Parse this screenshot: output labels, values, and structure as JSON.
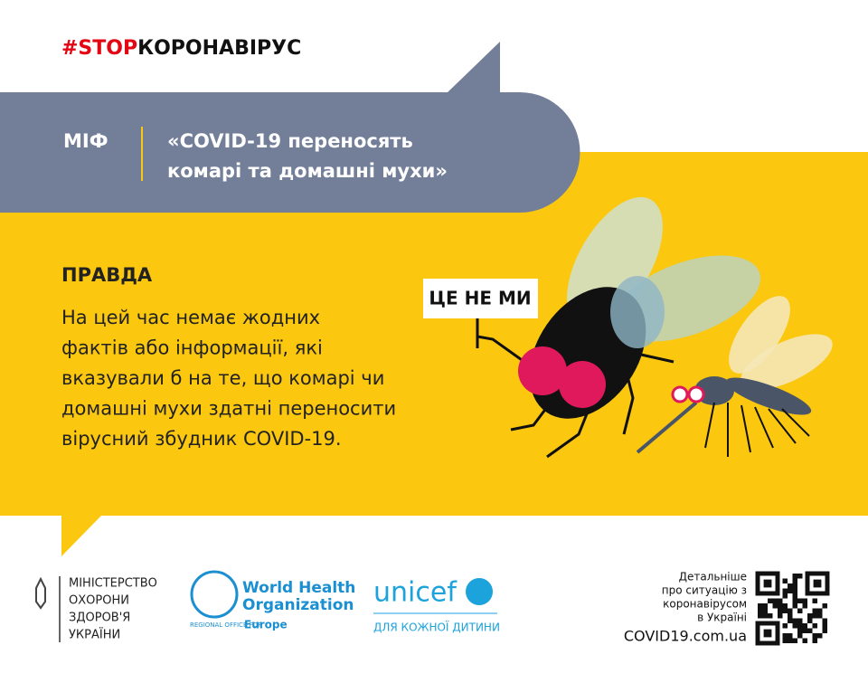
{
  "header": {
    "hashtag_stop": "#STOP",
    "hashtag_rest": "КОРОНАВІРУС"
  },
  "myth": {
    "label": "МІФ",
    "lines": [
      "«COVID-19 переносять",
      "комарі та домашні мухи»"
    ]
  },
  "truth": {
    "title": "ПРАВДА",
    "lines": [
      "На цей час немає жодних",
      "фактів або інформації, які",
      "вказували б на те, що комарі чи",
      "домашні мухи здатні переносити",
      "вірусний збудник COVID-19."
    ]
  },
  "illustration": {
    "sign": "ЦЕ НЕ МИ"
  },
  "footer": {
    "ministry": [
      "МІНІСТЕРСТВО",
      "ОХОРОНИ",
      "ЗДОРОВ'Я",
      "УКРАЇНИ"
    ],
    "who": {
      "name_lines": [
        "World Health",
        "Organization"
      ],
      "office": "REGIONAL OFFICE FOR",
      "region": "Europe"
    },
    "unicef": {
      "name": "unicef",
      "slogan": "ДЛЯ КОЖНОЇ ДИТИНИ"
    },
    "more_info": {
      "lines": [
        "Детальніше",
        "про ситуацію з",
        "коронавірусом",
        "в Україні"
      ],
      "url": "COVID19.com.ua"
    }
  }
}
